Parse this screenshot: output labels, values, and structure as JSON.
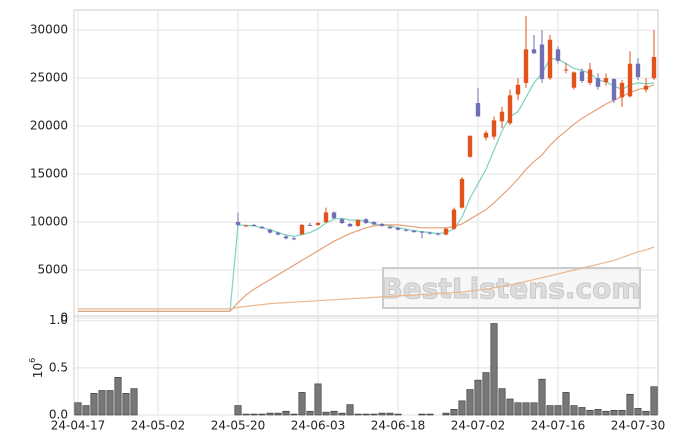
{
  "chart_data": {
    "type": "candlestick",
    "categories": [
      "24-04-17",
      null,
      null,
      null,
      null,
      null,
      null,
      null,
      null,
      null,
      "24-05-02",
      null,
      null,
      null,
      null,
      null,
      null,
      null,
      null,
      null,
      "24-05-20",
      null,
      null,
      null,
      null,
      null,
      null,
      null,
      null,
      null,
      "24-06-03",
      null,
      null,
      null,
      null,
      null,
      null,
      null,
      null,
      null,
      "24-06-18",
      null,
      null,
      null,
      null,
      null,
      null,
      null,
      null,
      null,
      "24-07-02",
      null,
      null,
      null,
      null,
      null,
      null,
      null,
      null,
      null,
      "24-07-16",
      null,
      null,
      null,
      null,
      null,
      null,
      null,
      null,
      null,
      "24-07-30",
      null,
      null
    ],
    "ohlc": [
      null,
      null,
      null,
      null,
      null,
      null,
      null,
      null,
      null,
      null,
      null,
      null,
      null,
      null,
      null,
      null,
      null,
      null,
      null,
      null,
      [
        10000,
        11000,
        9500,
        9700
      ],
      [
        9600,
        9700,
        9500,
        9650
      ],
      [
        9700,
        9800,
        9600,
        9650
      ],
      [
        9500,
        9600,
        9300,
        9350
      ],
      [
        9200,
        9300,
        8800,
        8900
      ],
      [
        8900,
        9000,
        8600,
        8700
      ],
      [
        8500,
        8600,
        8200,
        8300
      ],
      [
        8300,
        8500,
        8100,
        8250
      ],
      [
        8700,
        9800,
        8700,
        9700
      ],
      [
        9700,
        9900,
        9600,
        9650
      ],
      [
        9700,
        10000,
        9600,
        9900
      ],
      [
        10000,
        11500,
        9900,
        11000
      ],
      [
        11000,
        11100,
        10300,
        10400
      ],
      [
        10300,
        10400,
        9800,
        9900
      ],
      [
        9800,
        9900,
        9500,
        9550
      ],
      [
        9600,
        10300,
        9500,
        10200
      ],
      [
        10300,
        10400,
        9800,
        9900
      ],
      [
        10000,
        10100,
        9700,
        9750
      ],
      [
        9800,
        9900,
        9500,
        9600
      ],
      [
        9500,
        9600,
        9300,
        9350
      ],
      [
        9400,
        9500,
        9100,
        9200
      ],
      [
        9200,
        9300,
        9000,
        9100
      ],
      [
        9100,
        9200,
        8900,
        8950
      ],
      [
        9000,
        9050,
        8300,
        8900
      ],
      [
        8900,
        9000,
        8700,
        8800
      ],
      [
        8800,
        8900,
        8600,
        8700
      ],
      [
        8700,
        9400,
        8600,
        9300
      ],
      [
        9300,
        11500,
        9200,
        11300
      ],
      [
        11500,
        14700,
        11400,
        14500
      ],
      [
        16800,
        19000,
        16700,
        19000
      ],
      [
        22400,
        24000,
        21000,
        21000
      ],
      [
        18800,
        19500,
        18500,
        19300
      ],
      [
        18900,
        21000,
        18600,
        20600
      ],
      [
        20500,
        22000,
        19800,
        21500
      ],
      [
        20300,
        23800,
        20100,
        23200
      ],
      [
        23300,
        25000,
        22700,
        24300
      ],
      [
        24500,
        31500,
        24000,
        28000
      ],
      [
        28000,
        29500,
        27500,
        27600
      ],
      [
        28500,
        30000,
        24500,
        24900
      ],
      [
        25000,
        29500,
        24800,
        29000
      ],
      [
        28000,
        28300,
        26500,
        26800
      ],
      [
        25800,
        26600,
        25500,
        25900
      ],
      [
        24000,
        25700,
        23800,
        25600
      ],
      [
        25700,
        26000,
        24500,
        24700
      ],
      [
        24500,
        26600,
        24300,
        25900
      ],
      [
        25000,
        25500,
        23800,
        24100
      ],
      [
        24600,
        25500,
        24200,
        25000
      ],
      [
        24900,
        25000,
        22400,
        22700
      ],
      [
        23000,
        24800,
        22000,
        24500
      ],
      [
        23100,
        27800,
        23000,
        26500
      ],
      [
        26500,
        27100,
        24800,
        25100
      ],
      [
        23800,
        25000,
        23500,
        24200
      ],
      [
        25000,
        30000,
        24800,
        27200
      ]
    ],
    "up_color": "#e2521d",
    "down_color": "#6f6fb4",
    "lines": [
      {
        "color": "#7dd3c0",
        "values": [
          700,
          700,
          700,
          700,
          700,
          700,
          700,
          700,
          700,
          700,
          700,
          700,
          700,
          700,
          700,
          700,
          700,
          700,
          700,
          700,
          9700,
          9650,
          9600,
          9400,
          9200,
          8900,
          8650,
          8500,
          8700,
          8900,
          9300,
          9900,
          10300,
          10400,
          10200,
          10200,
          10100,
          9800,
          9700,
          9600,
          9400,
          9250,
          9100,
          9000,
          8900,
          8800,
          8900,
          9300,
          10500,
          12500,
          14000,
          15500,
          17500,
          19500,
          21000,
          21500,
          23000,
          24500,
          25500,
          27000,
          27000,
          26500,
          26000,
          25800,
          25500,
          24800,
          24600,
          24200,
          23800,
          24300,
          24500,
          24400,
          24500
        ]
      },
      {
        "color": "#e8a07a",
        "values": [
          700,
          700,
          700,
          700,
          700,
          700,
          700,
          700,
          700,
          700,
          700,
          700,
          700,
          700,
          700,
          700,
          700,
          700,
          700,
          700,
          1600,
          2400,
          3000,
          3500,
          4000,
          4500,
          5000,
          5500,
          6000,
          6500,
          7000,
          7500,
          8000,
          8400,
          8800,
          9100,
          9400,
          9600,
          9700,
          9700,
          9700,
          9600,
          9500,
          9400,
          9400,
          9400,
          9400,
          9500,
          9800,
          10300,
          10800,
          11300,
          12000,
          12800,
          13600,
          14500,
          15500,
          16300,
          17000,
          18000,
          18800,
          19500,
          20200,
          20800,
          21300,
          21800,
          22300,
          22700,
          23100,
          23500,
          23800,
          24000,
          24300
        ]
      },
      {
        "color": "#e9b88f",
        "values": [
          950,
          950,
          950,
          950,
          950,
          950,
          950,
          950,
          950,
          950,
          950,
          950,
          950,
          950,
          950,
          950,
          950,
          950,
          950,
          950,
          1100,
          1200,
          1300,
          1400,
          1500,
          1550,
          1600,
          1650,
          1700,
          1750,
          1800,
          1850,
          1900,
          1950,
          2000,
          2050,
          2100,
          2150,
          2200,
          2250,
          2300,
          2350,
          2400,
          2450,
          2500,
          2550,
          2600,
          2650,
          2700,
          2800,
          2900,
          3000,
          3150,
          3300,
          3450,
          3600,
          3800,
          4000,
          4200,
          4400,
          4600,
          4800,
          5000,
          5200,
          5400,
          5600,
          5800,
          6000,
          6300,
          6600,
          6900,
          7100,
          7400
        ]
      }
    ],
    "ylim": [
      0,
      32100
    ],
    "yticks": [
      0,
      5000,
      10000,
      15000,
      20000,
      25000,
      30000
    ],
    "volume": [
      0.13,
      0.1,
      0.23,
      0.26,
      0.26,
      0.4,
      0.23,
      0.28,
      0,
      0,
      0,
      0,
      0,
      0,
      0,
      0,
      0,
      0,
      0,
      0,
      0.1,
      0.01,
      0.01,
      0.01,
      0.02,
      0.02,
      0.04,
      0.01,
      0.24,
      0.04,
      0.33,
      0.03,
      0.04,
      0.02,
      0.11,
      0.01,
      0.01,
      0.01,
      0.02,
      0.02,
      0.01,
      0,
      0,
      0.01,
      0.01,
      0,
      0.02,
      0.06,
      0.15,
      0.27,
      0.37,
      0.45,
      0.97,
      0.28,
      0.17,
      0.13,
      0.13,
      0.13,
      0.38,
      0.1,
      0.1,
      0.24,
      0.1,
      0.08,
      0.05,
      0.06,
      0.04,
      0.05,
      0.05,
      0.22,
      0.07,
      0.04,
      0.3
    ],
    "volume_color": "#777777",
    "volume_ylim": [
      0,
      1.05
    ],
    "volume_yticks": [
      {
        "value": 0,
        "label": "0.0"
      },
      {
        "value": 0.5,
        "label": "0.5"
      },
      {
        "value": 1.0,
        "label": "1.0"
      }
    ],
    "volume_scale": {
      "base": "10",
      "exponent": "6"
    },
    "xlim": [
      -0.5,
      72.5
    ],
    "grid": true,
    "watermark": "BestListens.com"
  }
}
